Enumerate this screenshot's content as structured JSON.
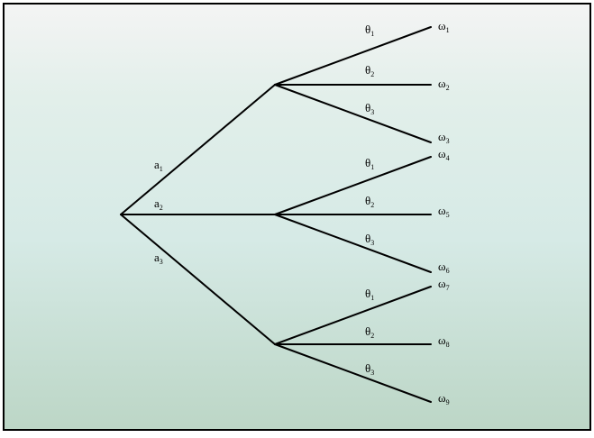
{
  "diagram": {
    "type": "decision-tree",
    "root": {
      "branches": [
        {
          "action": {
            "base": "a",
            "sub": "1"
          },
          "outcomes": [
            {
              "state": {
                "base": "θ",
                "sub": "1"
              },
              "result": {
                "base": "ω",
                "sub": "1"
              }
            },
            {
              "state": {
                "base": "θ",
                "sub": "2"
              },
              "result": {
                "base": "ω",
                "sub": "2"
              }
            },
            {
              "state": {
                "base": "θ",
                "sub": "3"
              },
              "result": {
                "base": "ω",
                "sub": "3"
              }
            }
          ]
        },
        {
          "action": {
            "base": "a",
            "sub": "2"
          },
          "outcomes": [
            {
              "state": {
                "base": "θ",
                "sub": "1"
              },
              "result": {
                "base": "ω",
                "sub": "4"
              }
            },
            {
              "state": {
                "base": "θ",
                "sub": "2"
              },
              "result": {
                "base": "ω",
                "sub": "5"
              }
            },
            {
              "state": {
                "base": "θ",
                "sub": "3"
              },
              "result": {
                "base": "ω",
                "sub": "6"
              }
            }
          ]
        },
        {
          "action": {
            "base": "a",
            "sub": "3"
          },
          "outcomes": [
            {
              "state": {
                "base": "θ",
                "sub": "1"
              },
              "result": {
                "base": "ω",
                "sub": "7"
              }
            },
            {
              "state": {
                "base": "θ",
                "sub": "2"
              },
              "result": {
                "base": "ω",
                "sub": "8"
              }
            },
            {
              "state": {
                "base": "θ",
                "sub": "3"
              },
              "result": {
                "base": "ω",
                "sub": "9"
              }
            }
          ]
        }
      ]
    }
  },
  "colors": {
    "frame": "#000000",
    "bg_top": "#f4f4f4",
    "bg_mid": "#d6eae6",
    "bg_bottom": "#bcd6c6",
    "edge": "#000000"
  }
}
